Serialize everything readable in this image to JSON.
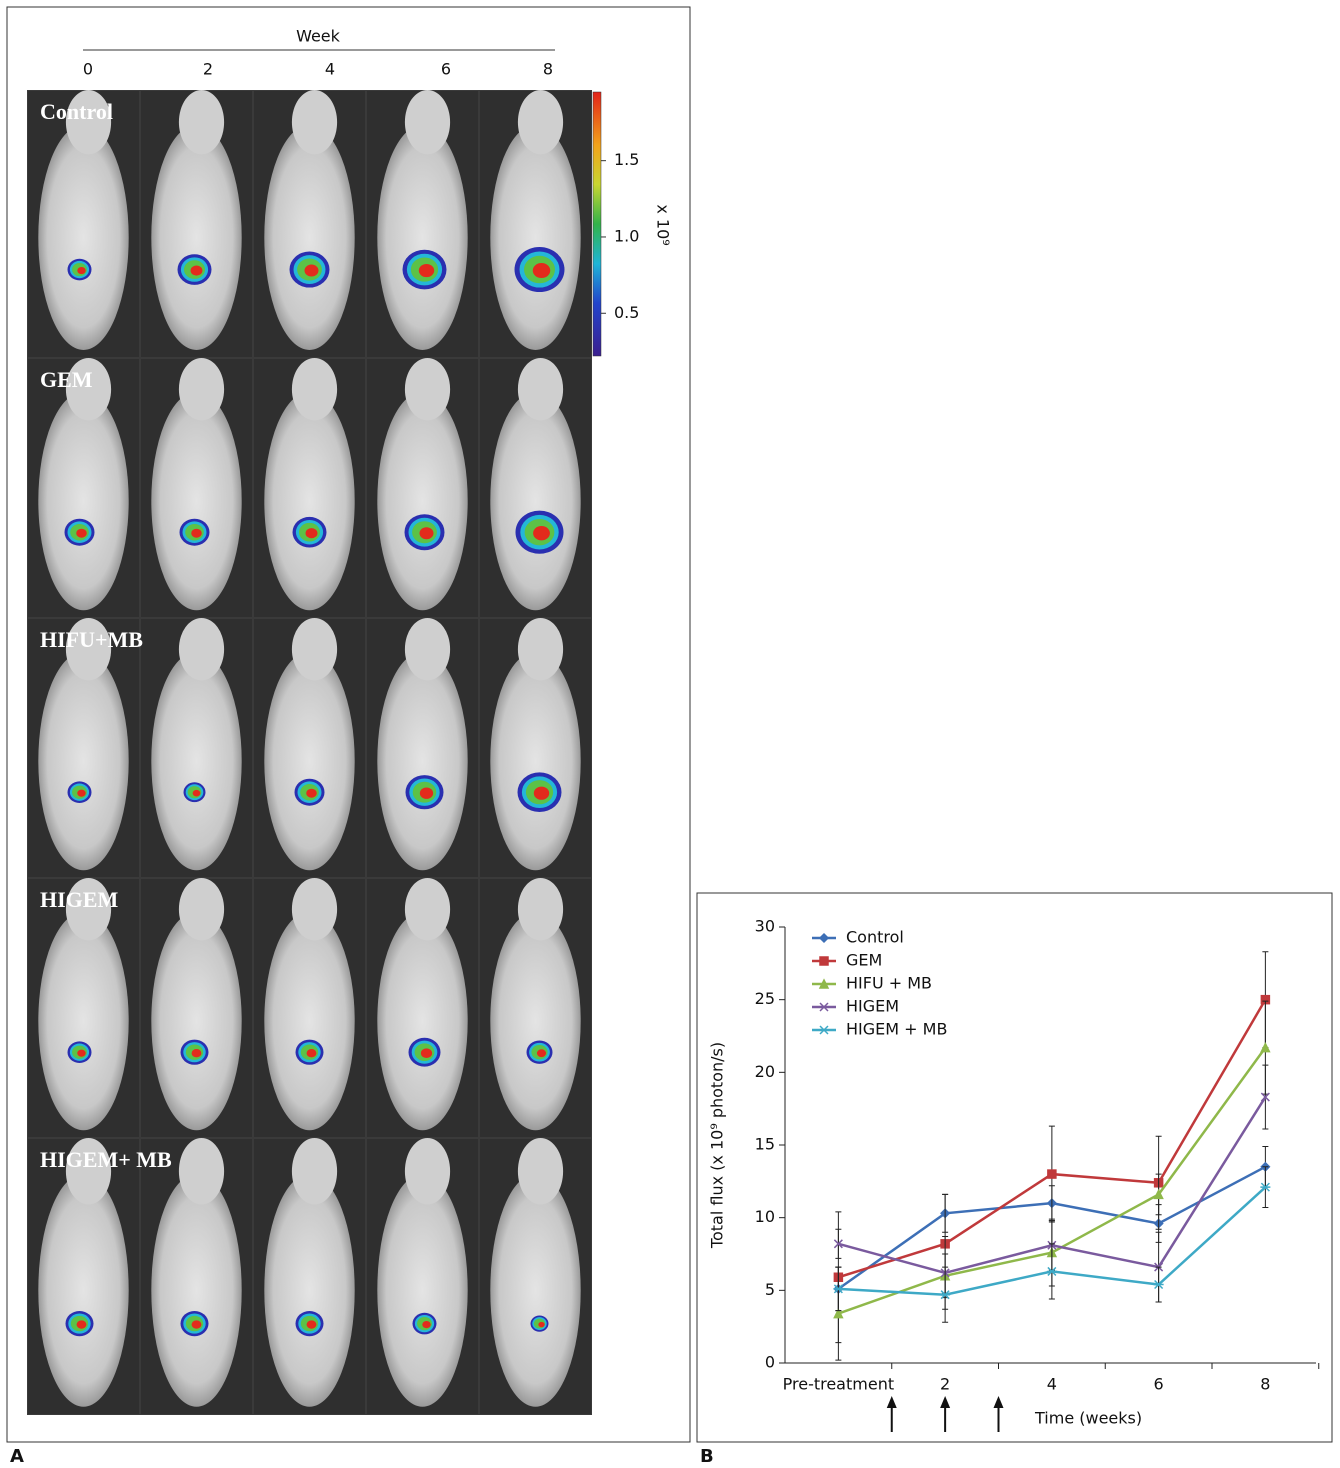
{
  "panel_a": {
    "label": "A",
    "header": "Week",
    "columns": [
      "0",
      "2",
      "4",
      "6",
      "8"
    ],
    "rows": [
      "Control",
      "GEM",
      "HIFU+MB",
      "HIGEM",
      "HIGEM+ MB"
    ],
    "colorbar": {
      "label": "x 10⁹",
      "clim": [
        0.22,
        1.95
      ],
      "ticks": [
        0.5,
        {
          "value": 1,
          "label": "1.0"
        },
        1.5
      ]
    }
  },
  "chart_data": {
    "type": "line",
    "label": "B",
    "x_label": "Time (weeks)",
    "y_label": "Total flux (x 10⁹ photon/s)",
    "categories": [
      "Pre-treatment",
      "2",
      "4",
      "6",
      "8"
    ],
    "ylim": [
      0,
      30
    ],
    "yticks": [
      0,
      5,
      10,
      15,
      20,
      25,
      30
    ],
    "legend": "top-left",
    "series": [
      {
        "name": "Control",
        "color": "#3d6fb6",
        "marker": "diamond",
        "values": [
          5.1,
          10.3,
          11.0,
          9.6,
          13.5
        ],
        "errors": [
          1.5,
          1.3,
          1.2,
          1.3,
          1.4
        ]
      },
      {
        "name": "GEM",
        "color": "#c0393b",
        "marker": "square",
        "values": [
          5.9,
          8.2,
          13.0,
          12.4,
          25.0
        ],
        "errors": [
          4.5,
          3.4,
          3.3,
          3.2,
          3.3
        ]
      },
      {
        "name": "HIFU + MB",
        "color": "#8fb84a",
        "marker": "triangle",
        "values": [
          3.4,
          6.0,
          7.6,
          11.6,
          21.7
        ],
        "errors": [
          3.2,
          1.5,
          2.3,
          1.4,
          3.2
        ]
      },
      {
        "name": "HIGEM",
        "color": "#7a5a9e",
        "marker": "x",
        "values": [
          8.2,
          6.2,
          8.1,
          6.6,
          18.3
        ],
        "errors": [
          1.0,
          2.5,
          1.7,
          2.4,
          2.2
        ]
      },
      {
        "name": "HIGEM + MB",
        "color": "#3ea9c6",
        "marker": "star",
        "values": [
          5.1,
          4.7,
          6.3,
          5.4,
          12.1
        ],
        "errors": [
          1.5,
          1.9,
          1.9,
          1.2,
          1.4
        ]
      }
    ]
  }
}
